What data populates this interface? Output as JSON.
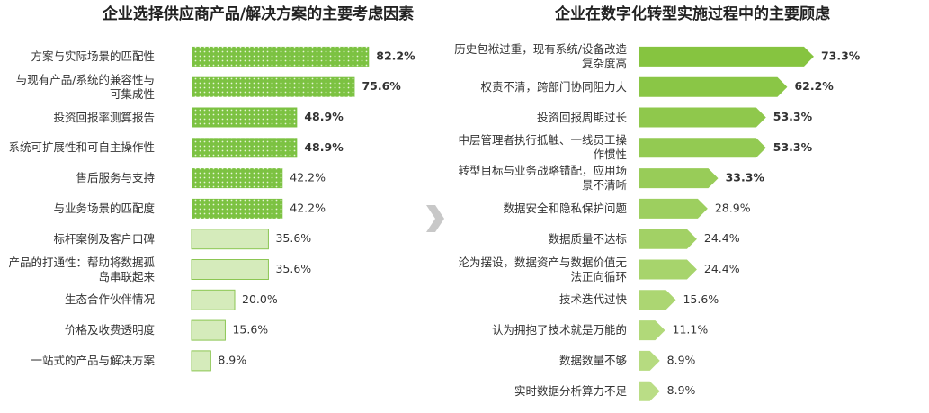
{
  "chart_data": [
    {
      "type": "bar",
      "bar_shape": "dotted-rect",
      "title": "企业选择供应商产品/解决方案的主要考虑因素",
      "categories": [
        "方案与实际场景的匹配性",
        "与现有产品/系统的兼容性与可集成性",
        "投资回报率测算报告",
        "系统可扩展性和可自主操作性",
        "售后服务与支持",
        "与业务场景的匹配度",
        "标杆案例及客户口碑",
        "产品的打通性：帮助将数据孤岛串联起来",
        "生态合作伙伴情况",
        "价格及收费透明度",
        "一站式的产品与解决方案"
      ],
      "values": [
        82.2,
        75.6,
        48.9,
        48.9,
        42.2,
        42.2,
        35.6,
        35.6,
        20.0,
        15.6,
        8.9
      ],
      "value_labels": [
        "82.2%",
        "75.6%",
        "48.9%",
        "48.9%",
        "42.2%",
        "42.2%",
        "35.6%",
        "35.6%",
        "20.0%",
        "15.6%",
        "8.9%"
      ],
      "colors": [
        "#7cc242",
        "#7cc242",
        "#7cc242",
        "#7cc242",
        "#7cc242",
        "#7cc242",
        "#d5ebbb",
        "#d5ebbb",
        "#d5ebbb",
        "#d5ebbb",
        "#d5ebbb"
      ],
      "label_weights": [
        "bold",
        "bold",
        "bold",
        "bold",
        "normal",
        "normal",
        "normal",
        "normal",
        "normal",
        "normal",
        "normal"
      ],
      "xlim": [
        0,
        100
      ]
    },
    {
      "type": "bar",
      "bar_shape": "arrow",
      "title": "企业在数字化转型实施过程中的主要顾虑",
      "categories": [
        "历史包袱过重，现有系统/设备改造复杂度高",
        "权责不清，跨部门协同阻力大",
        "投资回报周期过长",
        "中层管理者执行抵触、一线员工操作惯性",
        "转型目标与业务战略错配，应用场景不清晰",
        "数据安全和隐私保护问题",
        "数据质量不达标",
        "沦为摆设，数据资产与数据价值无法正向循环",
        "技术迭代过快",
        "认为拥抱了技术就是万能的",
        "数据数量不够",
        "实时数据分析算力不足"
      ],
      "values": [
        73.3,
        62.2,
        53.3,
        53.3,
        33.3,
        28.9,
        24.4,
        24.4,
        15.6,
        11.1,
        8.9,
        8.9
      ],
      "value_labels": [
        "73.3%",
        "62.2%",
        "53.3%",
        "53.3%",
        "33.3%",
        "28.9%",
        "24.4%",
        "24.4%",
        "15.6%",
        "11.1%",
        "8.9%",
        "8.9%"
      ],
      "colors": [
        "#86c440",
        "#8ac646",
        "#8fc84c",
        "#93ca52",
        "#98cc58",
        "#9dcf5f",
        "#a2d165",
        "#a7d46c",
        "#acd672",
        "#b1d979",
        "#b6db80",
        "#badd86"
      ],
      "label_weights": [
        "bold",
        "bold",
        "bold",
        "bold",
        "bold",
        "normal",
        "normal",
        "normal",
        "normal",
        "normal",
        "normal",
        "normal"
      ],
      "xlim": [
        0,
        100
      ]
    }
  ]
}
